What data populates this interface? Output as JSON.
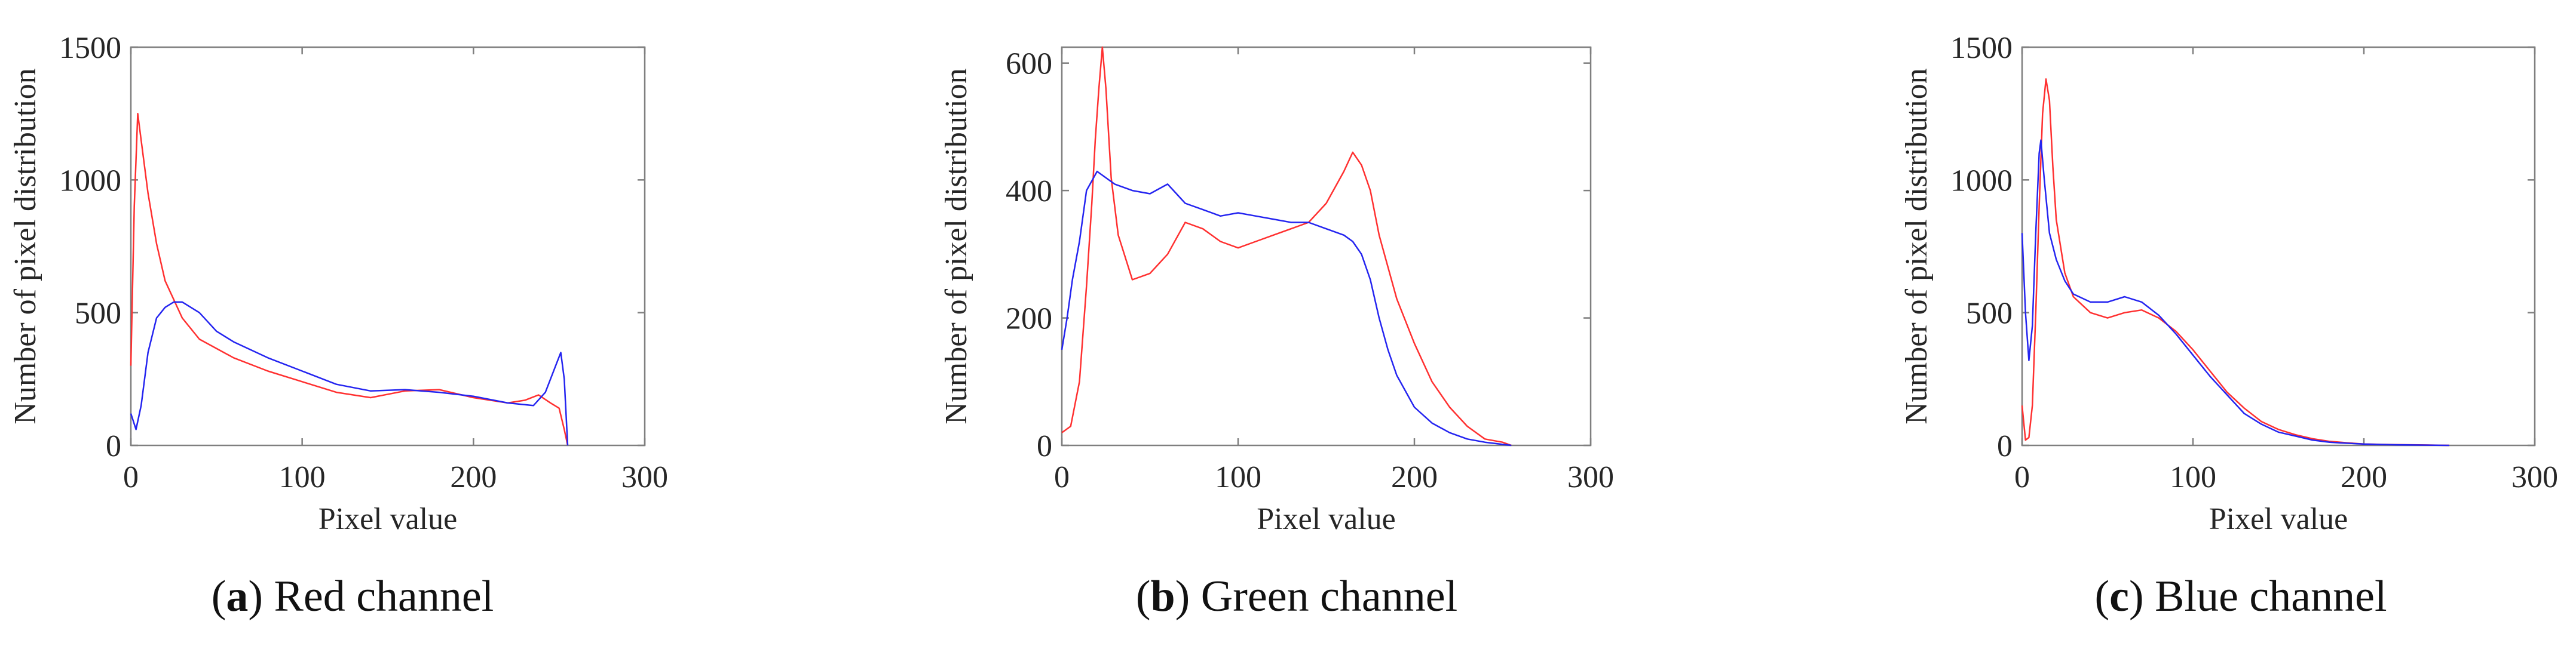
{
  "figure": {
    "colors": {
      "red_series": "#ff3030",
      "blue_series": "#2424f0",
      "axes": "#7f7f7f",
      "text": "#262626"
    }
  },
  "chart_data": [
    {
      "type": "line",
      "caption": {
        "letter": "a",
        "text": "Red channel"
      },
      "xlabel": "Pixel value",
      "ylabel": "Number of pixel distribution",
      "xlim": [
        0,
        300
      ],
      "ylim": [
        0,
        1500
      ],
      "xticks": [
        "0",
        "100",
        "200",
        "300"
      ],
      "yticks": [
        "0",
        "500",
        "1000",
        "1500"
      ],
      "grid": false,
      "series": [
        {
          "name": "red",
          "color": "#ff3030",
          "points": [
            [
              0,
              300
            ],
            [
              2,
              900
            ],
            [
              4,
              1250
            ],
            [
              6,
              1150
            ],
            [
              10,
              950
            ],
            [
              15,
              760
            ],
            [
              20,
              620
            ],
            [
              30,
              480
            ],
            [
              40,
              400
            ],
            [
              60,
              330
            ],
            [
              80,
              280
            ],
            [
              100,
              240
            ],
            [
              120,
              200
            ],
            [
              140,
              180
            ],
            [
              160,
              205
            ],
            [
              180,
              210
            ],
            [
              200,
              180
            ],
            [
              220,
              160
            ],
            [
              230,
              170
            ],
            [
              238,
              190
            ],
            [
              245,
              160
            ],
            [
              250,
              140
            ],
            [
              253,
              60
            ],
            [
              255,
              0
            ]
          ]
        },
        {
          "name": "blue",
          "color": "#2424f0",
          "points": [
            [
              0,
              120
            ],
            [
              3,
              60
            ],
            [
              6,
              150
            ],
            [
              10,
              350
            ],
            [
              15,
              480
            ],
            [
              20,
              520
            ],
            [
              25,
              540
            ],
            [
              30,
              540
            ],
            [
              40,
              500
            ],
            [
              50,
              430
            ],
            [
              60,
              390
            ],
            [
              80,
              330
            ],
            [
              100,
              280
            ],
            [
              120,
              230
            ],
            [
              140,
              205
            ],
            [
              160,
              210
            ],
            [
              180,
              200
            ],
            [
              200,
              185
            ],
            [
              220,
              160
            ],
            [
              235,
              150
            ],
            [
              242,
              200
            ],
            [
              248,
              300
            ],
            [
              251,
              350
            ],
            [
              253,
              250
            ],
            [
              255,
              0
            ]
          ]
        }
      ]
    },
    {
      "type": "line",
      "caption": {
        "letter": "b",
        "text": "Green channel"
      },
      "xlabel": "Pixel value",
      "ylabel": "Number of pixel distribution",
      "xlim": [
        0,
        300
      ],
      "ylim": [
        0,
        625
      ],
      "xticks": [
        "0",
        "100",
        "200",
        "300"
      ],
      "yticks": [
        "0",
        "200",
        "400",
        "600"
      ],
      "grid": false,
      "series": [
        {
          "name": "red",
          "color": "#ff3030",
          "points": [
            [
              0,
              20
            ],
            [
              5,
              30
            ],
            [
              10,
              100
            ],
            [
              14,
              250
            ],
            [
              17,
              380
            ],
            [
              19,
              480
            ],
            [
              21,
              560
            ],
            [
              23,
              625
            ],
            [
              25,
              560
            ],
            [
              28,
              420
            ],
            [
              32,
              330
            ],
            [
              40,
              260
            ],
            [
              50,
              270
            ],
            [
              60,
              300
            ],
            [
              70,
              350
            ],
            [
              80,
              340
            ],
            [
              90,
              320
            ],
            [
              100,
              310
            ],
            [
              110,
              320
            ],
            [
              120,
              330
            ],
            [
              130,
              340
            ],
            [
              140,
              350
            ],
            [
              150,
              380
            ],
            [
              160,
              430
            ],
            [
              165,
              460
            ],
            [
              170,
              440
            ],
            [
              175,
              400
            ],
            [
              180,
              330
            ],
            [
              190,
              230
            ],
            [
              200,
              160
            ],
            [
              210,
              100
            ],
            [
              220,
              60
            ],
            [
              230,
              30
            ],
            [
              240,
              10
            ],
            [
              250,
              5
            ],
            [
              255,
              0
            ]
          ]
        },
        {
          "name": "blue",
          "color": "#2424f0",
          "points": [
            [
              0,
              150
            ],
            [
              3,
              200
            ],
            [
              6,
              260
            ],
            [
              10,
              320
            ],
            [
              14,
              400
            ],
            [
              18,
              420
            ],
            [
              20,
              430
            ],
            [
              30,
              410
            ],
            [
              40,
              400
            ],
            [
              50,
              395
            ],
            [
              60,
              410
            ],
            [
              70,
              380
            ],
            [
              80,
              370
            ],
            [
              90,
              360
            ],
            [
              100,
              365
            ],
            [
              110,
              360
            ],
            [
              120,
              355
            ],
            [
              130,
              350
            ],
            [
              140,
              350
            ],
            [
              150,
              340
            ],
            [
              160,
              330
            ],
            [
              165,
              320
            ],
            [
              170,
              300
            ],
            [
              175,
              260
            ],
            [
              180,
              200
            ],
            [
              185,
              150
            ],
            [
              190,
              110
            ],
            [
              200,
              60
            ],
            [
              210,
              35
            ],
            [
              220,
              20
            ],
            [
              230,
              10
            ],
            [
              240,
              5
            ],
            [
              255,
              0
            ]
          ]
        }
      ]
    },
    {
      "type": "line",
      "caption": {
        "letter": "c",
        "text": "Blue channel"
      },
      "xlabel": "Pixel value",
      "ylabel": "Number of pixel distribution",
      "xlim": [
        0,
        300
      ],
      "ylim": [
        0,
        1500
      ],
      "xticks": [
        "0",
        "100",
        "200",
        "300"
      ],
      "yticks": [
        "0",
        "500",
        "1000",
        "1500"
      ],
      "grid": false,
      "series": [
        {
          "name": "red",
          "color": "#ff3030",
          "points": [
            [
              0,
              150
            ],
            [
              2,
              20
            ],
            [
              4,
              30
            ],
            [
              6,
              150
            ],
            [
              8,
              500
            ],
            [
              10,
              900
            ],
            [
              12,
              1250
            ],
            [
              14,
              1380
            ],
            [
              16,
              1300
            ],
            [
              18,
              1050
            ],
            [
              20,
              850
            ],
            [
              25,
              650
            ],
            [
              30,
              560
            ],
            [
              40,
              500
            ],
            [
              50,
              480
            ],
            [
              60,
              500
            ],
            [
              70,
              510
            ],
            [
              80,
              480
            ],
            [
              90,
              430
            ],
            [
              100,
              360
            ],
            [
              110,
              280
            ],
            [
              120,
              200
            ],
            [
              130,
              140
            ],
            [
              140,
              90
            ],
            [
              150,
              60
            ],
            [
              160,
              40
            ],
            [
              170,
              25
            ],
            [
              180,
              15
            ],
            [
              190,
              10
            ],
            [
              200,
              5
            ],
            [
              220,
              3
            ],
            [
              250,
              0
            ]
          ]
        },
        {
          "name": "blue",
          "color": "#2424f0",
          "points": [
            [
              0,
              800
            ],
            [
              2,
              500
            ],
            [
              4,
              320
            ],
            [
              6,
              450
            ],
            [
              8,
              800
            ],
            [
              10,
              1100
            ],
            [
              11,
              1150
            ],
            [
              13,
              1000
            ],
            [
              16,
              800
            ],
            [
              20,
              700
            ],
            [
              25,
              620
            ],
            [
              30,
              570
            ],
            [
              40,
              540
            ],
            [
              50,
              540
            ],
            [
              60,
              560
            ],
            [
              70,
              540
            ],
            [
              80,
              490
            ],
            [
              90,
              420
            ],
            [
              100,
              340
            ],
            [
              110,
              260
            ],
            [
              120,
              190
            ],
            [
              130,
              120
            ],
            [
              140,
              80
            ],
            [
              150,
              50
            ],
            [
              160,
              35
            ],
            [
              170,
              20
            ],
            [
              180,
              12
            ],
            [
              190,
              8
            ],
            [
              200,
              5
            ],
            [
              220,
              2
            ],
            [
              250,
              0
            ]
          ]
        }
      ]
    }
  ]
}
